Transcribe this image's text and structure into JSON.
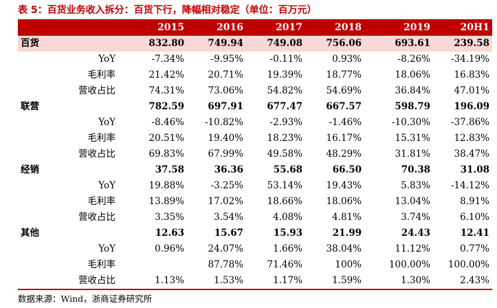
{
  "title": "表 5：百货业务收入拆分：百货下行，降幅相对稳定（单位：百万元）",
  "columns": [
    "2015",
    "2016",
    "2017",
    "2018",
    "2019",
    "20H1"
  ],
  "rows": [
    {
      "label": "百货",
      "values": [
        "832.80",
        "749.94",
        "749.08",
        "756.06",
        "693.61",
        "239.58"
      ]
    },
    {
      "label": "YoY",
      "values": [
        "-7.34%",
        "-9.95%",
        "-0.11%",
        "0.93%",
        "-8.26%",
        "-34.19%"
      ]
    },
    {
      "label": "毛利率",
      "values": [
        "21.42%",
        "20.71%",
        "19.39%",
        "18.77%",
        "18.06%",
        "16.83%"
      ]
    },
    {
      "label": "营收占比",
      "values": [
        "74.31%",
        "73.06%",
        "54.82%",
        "54.69%",
        "36.84%",
        "47.01%"
      ]
    },
    {
      "label": "联营",
      "values": [
        "782.59",
        "697.91",
        "677.47",
        "667.57",
        "598.79",
        "196.09"
      ]
    },
    {
      "label": "YoY",
      "values": [
        "-8.46%",
        "-10.82%",
        "-2.93%",
        "-1.46%",
        "-10.30%",
        "-37.86%"
      ]
    },
    {
      "label": "毛利率",
      "values": [
        "20.51%",
        "19.40%",
        "18.23%",
        "16.17%",
        "15.31%",
        "12.83%"
      ]
    },
    {
      "label": "营收占比",
      "values": [
        "69.83%",
        "67.99%",
        "49.58%",
        "48.29%",
        "31.81%",
        "38.47%"
      ]
    },
    {
      "label": "经销",
      "values": [
        "37.58",
        "36.36",
        "55.68",
        "66.50",
        "70.38",
        "31.08"
      ]
    },
    {
      "label": "YoY",
      "values": [
        "19.88%",
        "-3.25%",
        "53.14%",
        "19.43%",
        "5.83%",
        "-14.12%"
      ]
    },
    {
      "label": "毛利率",
      "values": [
        "13.89%",
        "17.02%",
        "18.66%",
        "18.06%",
        "13.04%",
        "8.91%"
      ]
    },
    {
      "label": "营收占比",
      "values": [
        "3.35%",
        "3.54%",
        "4.08%",
        "4.81%",
        "3.74%",
        "6.10%"
      ]
    },
    {
      "label": "其他",
      "values": [
        "12.63",
        "15.67",
        "15.93",
        "21.99",
        "24.43",
        "12.41"
      ]
    },
    {
      "label": "YoY",
      "values": [
        "0.96%",
        "24.07%",
        "1.66%",
        "38.04%",
        "11.12%",
        "0.77%"
      ]
    },
    {
      "label": "毛利率",
      "values": [
        "",
        "87.78%",
        "71.46%",
        "100%",
        "100.00%",
        "100.00%"
      ]
    },
    {
      "label": "营收占比",
      "values": [
        "1.13%",
        "1.53%",
        "1.17%",
        "1.59%",
        "1.30%",
        "2.43%"
      ]
    }
  ],
  "source": "数据来源：Wind，浙商证券研究所",
  "colors": {
    "header_bg": "#c00000",
    "highlight_bg": "#f8d7d7",
    "title": "#c00000"
  }
}
